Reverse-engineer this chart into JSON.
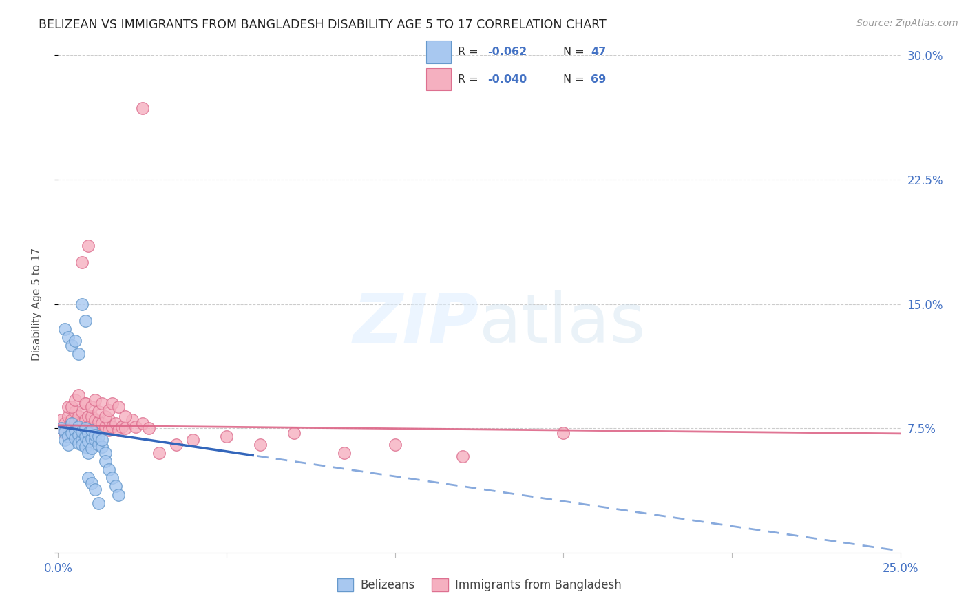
{
  "title": "BELIZEAN VS IMMIGRANTS FROM BANGLADESH DISABILITY AGE 5 TO 17 CORRELATION CHART",
  "source": "Source: ZipAtlas.com",
  "ylabel": "Disability Age 5 to 17",
  "xlim": [
    0.0,
    0.25
  ],
  "ylim": [
    0.0,
    0.3
  ],
  "color_blue": "#a8c8f0",
  "color_pink": "#f5b0c0",
  "color_blue_edge": "#6699cc",
  "color_pink_edge": "#dd7090",
  "color_text_blue": "#4472c4",
  "color_trend_blue_solid": "#3366bb",
  "color_trend_blue_dash": "#88aadd",
  "color_trend_pink": "#dd6688",
  "belizeans_x": [
    0.001,
    0.002,
    0.002,
    0.003,
    0.003,
    0.004,
    0.004,
    0.005,
    0.005,
    0.006,
    0.006,
    0.006,
    0.007,
    0.007,
    0.007,
    0.008,
    0.008,
    0.008,
    0.009,
    0.009,
    0.009,
    0.01,
    0.01,
    0.01,
    0.011,
    0.011,
    0.012,
    0.012,
    0.013,
    0.013,
    0.014,
    0.014,
    0.015,
    0.016,
    0.017,
    0.018,
    0.002,
    0.003,
    0.004,
    0.005,
    0.006,
    0.007,
    0.008,
    0.009,
    0.01,
    0.011,
    0.012
  ],
  "belizeans_y": [
    0.075,
    0.073,
    0.068,
    0.07,
    0.065,
    0.078,
    0.072,
    0.074,
    0.069,
    0.071,
    0.076,
    0.066,
    0.068,
    0.073,
    0.065,
    0.07,
    0.075,
    0.064,
    0.072,
    0.067,
    0.06,
    0.069,
    0.074,
    0.063,
    0.068,
    0.071,
    0.065,
    0.07,
    0.064,
    0.068,
    0.06,
    0.055,
    0.05,
    0.045,
    0.04,
    0.035,
    0.135,
    0.13,
    0.125,
    0.128,
    0.12,
    0.15,
    0.14,
    0.045,
    0.042,
    0.038,
    0.03
  ],
  "bangladesh_x": [
    0.001,
    0.001,
    0.002,
    0.002,
    0.003,
    0.003,
    0.003,
    0.004,
    0.004,
    0.005,
    0.005,
    0.005,
    0.006,
    0.006,
    0.006,
    0.007,
    0.007,
    0.008,
    0.008,
    0.008,
    0.009,
    0.009,
    0.01,
    0.01,
    0.01,
    0.011,
    0.011,
    0.012,
    0.012,
    0.013,
    0.013,
    0.014,
    0.015,
    0.015,
    0.016,
    0.017,
    0.018,
    0.019,
    0.02,
    0.022,
    0.023,
    0.025,
    0.027,
    0.03,
    0.035,
    0.04,
    0.05,
    0.06,
    0.07,
    0.085,
    0.1,
    0.12,
    0.15,
    0.004,
    0.005,
    0.006,
    0.007,
    0.008,
    0.009,
    0.01,
    0.011,
    0.012,
    0.013,
    0.014,
    0.015,
    0.016,
    0.018,
    0.02,
    0.025
  ],
  "bangladesh_y": [
    0.075,
    0.08,
    0.078,
    0.072,
    0.082,
    0.076,
    0.088,
    0.08,
    0.075,
    0.074,
    0.079,
    0.085,
    0.076,
    0.082,
    0.072,
    0.078,
    0.085,
    0.074,
    0.08,
    0.09,
    0.076,
    0.082,
    0.075,
    0.078,
    0.082,
    0.076,
    0.08,
    0.075,
    0.079,
    0.074,
    0.078,
    0.076,
    0.08,
    0.074,
    0.076,
    0.078,
    0.074,
    0.076,
    0.075,
    0.08,
    0.076,
    0.078,
    0.075,
    0.06,
    0.065,
    0.068,
    0.07,
    0.065,
    0.072,
    0.06,
    0.065,
    0.058,
    0.072,
    0.088,
    0.092,
    0.095,
    0.175,
    0.09,
    0.185,
    0.088,
    0.092,
    0.085,
    0.09,
    0.082,
    0.086,
    0.09,
    0.088,
    0.082,
    0.268
  ]
}
